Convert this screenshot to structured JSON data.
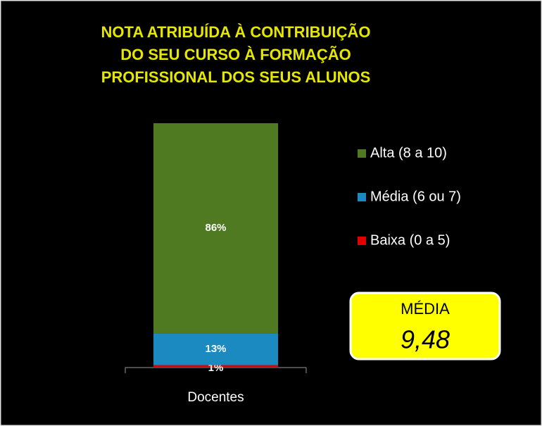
{
  "chart_data": {
    "type": "stacked_bar",
    "title": [
      "NOTA ATRIBUÍDA À CONTRIBUIÇÃO",
      "DO SEU CURSO À FORMAÇÃO",
      "PROFISSIONAL DOS SEUS ALUNOS"
    ],
    "categories": [
      "Docentes"
    ],
    "series": [
      {
        "name": "Baixa (0 a 5)",
        "color": "#e00000",
        "values": [
          1
        ],
        "value_labels": [
          "1%"
        ]
      },
      {
        "name": "Média (6 ou 7)",
        "color": "#1a8ac0",
        "values": [
          13
        ],
        "value_labels": [
          "13%"
        ]
      },
      {
        "name": "Alta (8 a 10)",
        "color": "#4f7a21",
        "values": [
          86
        ],
        "value_labels": [
          "86%"
        ]
      }
    ],
    "annotation": {
      "label": "MÉDIA",
      "value": "9,48"
    }
  }
}
